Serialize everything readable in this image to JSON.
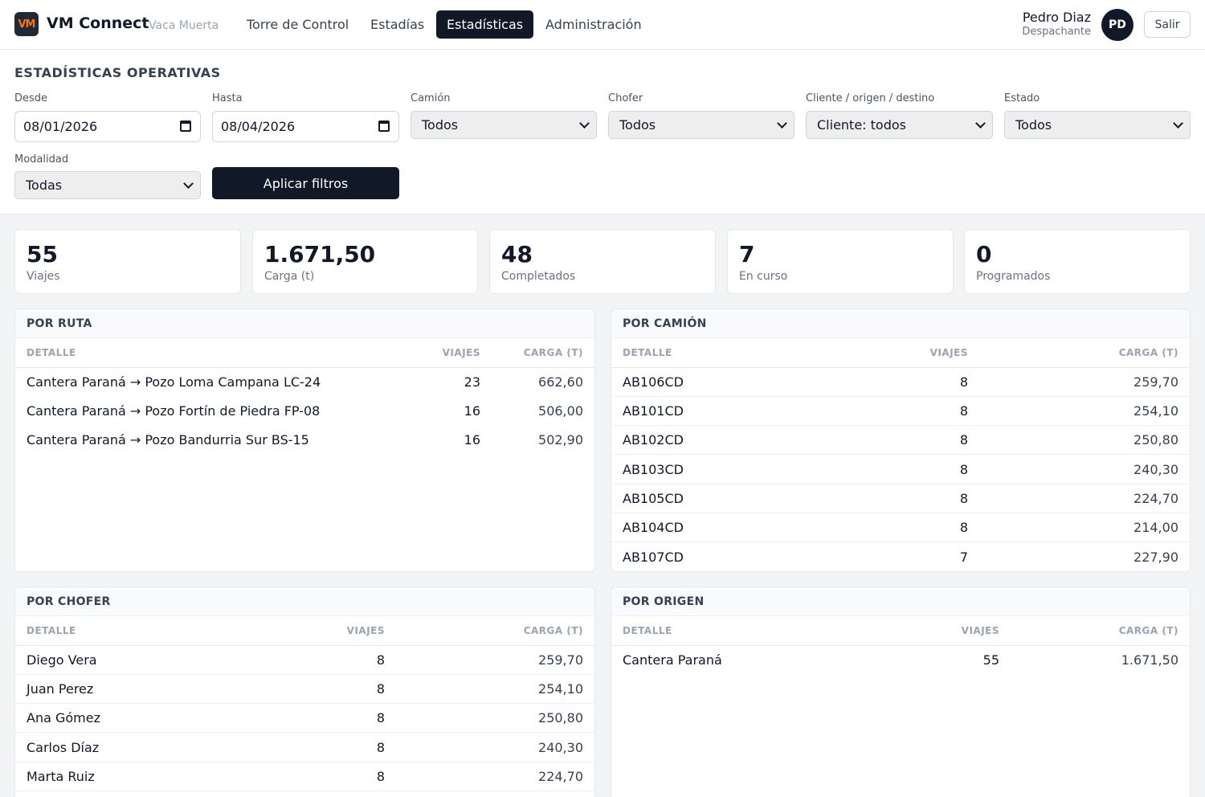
{
  "header": {
    "logo_text": "VM",
    "app_name": "VM Connect",
    "app_subtitle": "Vaca Muerta",
    "nav": [
      {
        "label": "Torre de Control",
        "active": false
      },
      {
        "label": "Estadías",
        "active": false
      },
      {
        "label": "Estadísticas",
        "active": true
      },
      {
        "label": "Administración",
        "active": false
      }
    ],
    "user": {
      "name": "Pedro Diaz",
      "role": "Despachante",
      "initials": "PD"
    },
    "logout_label": "Salir"
  },
  "filters": {
    "title": "ESTADÍSTICAS OPERATIVAS",
    "desde": {
      "label": "Desde",
      "value": "08/01/2026"
    },
    "hasta": {
      "label": "Hasta",
      "value": "08/04/2026"
    },
    "camion": {
      "label": "Camión",
      "value": "Todos"
    },
    "chofer": {
      "label": "Chofer",
      "value": "Todos"
    },
    "cliente": {
      "label": "Cliente / origen / destino",
      "value": "Cliente: todos"
    },
    "estado": {
      "label": "Estado",
      "value": "Todos"
    },
    "modalidad": {
      "label": "Modalidad",
      "value": "Todas"
    },
    "apply_label": "Aplicar filtros"
  },
  "kpis": [
    {
      "value": "55",
      "label": "Viajes"
    },
    {
      "value": "1.671,50",
      "label": "Carga (t)"
    },
    {
      "value": "48",
      "label": "Completados"
    },
    {
      "value": "7",
      "label": "En curso"
    },
    {
      "value": "0",
      "label": "Programados"
    }
  ],
  "panels": {
    "ruta": {
      "title": "POR RUTA",
      "columns": [
        "DETALLE",
        "VIAJES",
        "CARGA (T)"
      ],
      "rows": [
        [
          "Cantera Paraná → Pozo Loma Campana LC-24",
          "23",
          "662,60"
        ],
        [
          "Cantera Paraná → Pozo Fortín de Piedra FP-08",
          "16",
          "506,00"
        ],
        [
          "Cantera Paraná → Pozo Bandurria Sur BS-15",
          "16",
          "502,90"
        ]
      ]
    },
    "camion": {
      "title": "POR CAMIÓN",
      "columns": [
        "DETALLE",
        "VIAJES",
        "CARGA (T)"
      ],
      "rows": [
        [
          "AB106CD",
          "8",
          "259,70"
        ],
        [
          "AB101CD",
          "8",
          "254,10"
        ],
        [
          "AB102CD",
          "8",
          "250,80"
        ],
        [
          "AB103CD",
          "8",
          "240,30"
        ],
        [
          "AB105CD",
          "8",
          "224,70"
        ],
        [
          "AB104CD",
          "8",
          "214,00"
        ],
        [
          "AB107CD",
          "7",
          "227,90"
        ]
      ]
    },
    "chofer": {
      "title": "POR CHOFER",
      "columns": [
        "DETALLE",
        "VIAJES",
        "CARGA (T)"
      ],
      "rows": [
        [
          "Diego Vera",
          "8",
          "259,70"
        ],
        [
          "Juan Perez",
          "8",
          "254,10"
        ],
        [
          "Ana Gómez",
          "8",
          "250,80"
        ],
        [
          "Carlos Díaz",
          "8",
          "240,30"
        ],
        [
          "Marta Ruiz",
          "8",
          "224,70"
        ]
      ]
    },
    "origen": {
      "title": "POR ORIGEN",
      "columns": [
        "DETALLE",
        "VIAJES",
        "CARGA (T)"
      ],
      "rows": [
        [
          "Cantera Paraná",
          "55",
          "1.671,50"
        ]
      ]
    }
  }
}
